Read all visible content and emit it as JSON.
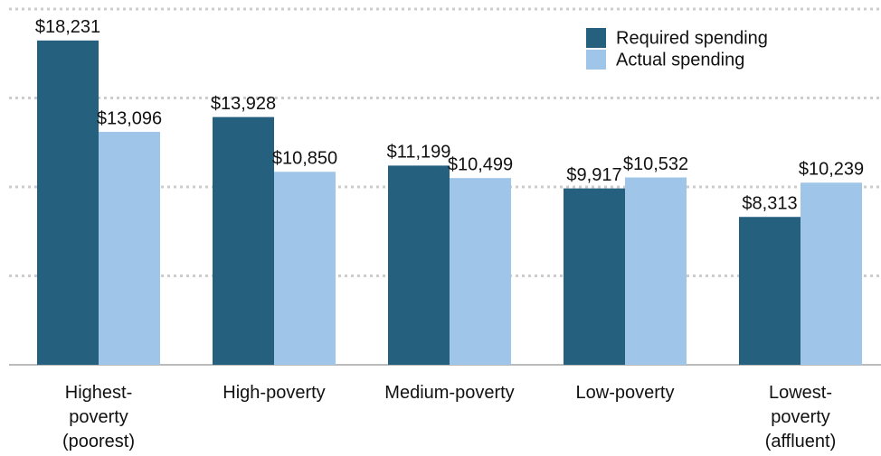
{
  "chart_data": {
    "type": "bar",
    "categories": [
      "Highest-\npoverty\n(poorest)",
      "High-poverty",
      "Medium-poverty",
      "Low-poverty",
      "Lowest-\npoverty\n(affluent)"
    ],
    "series": [
      {
        "name": "Required spending",
        "color": "#25607f",
        "values": [
          18231,
          13928,
          11199,
          9917,
          8313
        ],
        "value_labels": [
          "$18,231",
          "$13,928",
          "$11,199",
          "$9,917",
          "$8,313"
        ]
      },
      {
        "name": "Actual spending",
        "color": "#9fc5e8",
        "values": [
          13096,
          10850,
          10499,
          10532,
          10239
        ],
        "value_labels": [
          "$13,096",
          "$10,850",
          "$10,499",
          "$10,532",
          "$10,239"
        ]
      }
    ],
    "ylim": [
      0,
      20000
    ],
    "yticks": [
      0,
      5000,
      10000,
      15000,
      20000
    ],
    "grid": true
  }
}
